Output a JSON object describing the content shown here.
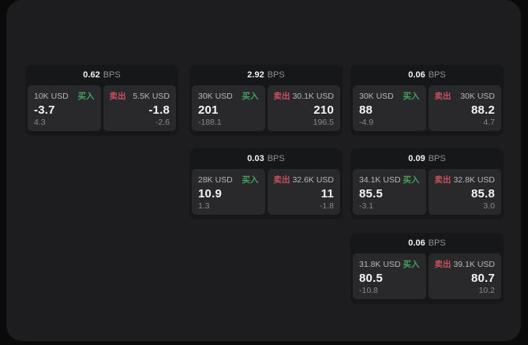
{
  "labels": {
    "bps_unit": "BPS",
    "buy": "买入",
    "sell": "卖出"
  },
  "colors": {
    "outer_background": "#0a0a0b",
    "panel_background": "#1d1d1f",
    "card_background": "#161719",
    "tile_background": "#29292b",
    "buy_accent": "#43a15c",
    "sell_accent": "#c5515e",
    "primary_text": "#f4f4f5",
    "muted_text": "#89898c"
  },
  "cards": [
    {
      "bps": "0.62",
      "col": 0,
      "row": 0,
      "buy": {
        "amount": "10K USD",
        "price": "-3.7",
        "delta": "4.3"
      },
      "sell": {
        "amount": "5.5K USD",
        "price": "-1.8",
        "delta": "-2.6"
      }
    },
    {
      "bps": "2.92",
      "col": 1,
      "row": 0,
      "buy": {
        "amount": "30K USD",
        "price": "201",
        "delta": "-188.1"
      },
      "sell": {
        "amount": "30.1K USD",
        "price": "210",
        "delta": "196.5"
      }
    },
    {
      "bps": "0.06",
      "col": 2,
      "row": 0,
      "buy": {
        "amount": "30K USD",
        "price": "88",
        "delta": "-4.9"
      },
      "sell": {
        "amount": "30K USD",
        "price": "88.2",
        "delta": "4.7"
      }
    },
    {
      "bps": "0.03",
      "col": 1,
      "row": 1,
      "buy": {
        "amount": "28K USD",
        "price": "10.9",
        "delta": "1.3"
      },
      "sell": {
        "amount": "32.6K USD",
        "price": "11",
        "delta": "-1.8"
      }
    },
    {
      "bps": "0.09",
      "col": 2,
      "row": 1,
      "buy": {
        "amount": "34.1K USD",
        "price": "85.5",
        "delta": "-3.1"
      },
      "sell": {
        "amount": "32.8K USD",
        "price": "85.8",
        "delta": "3.0"
      }
    },
    {
      "bps": "0.06",
      "col": 2,
      "row": 2,
      "buy": {
        "amount": "31.8K USD",
        "price": "80.5",
        "delta": "-10.8"
      },
      "sell": {
        "amount": "39.1K USD",
        "price": "80.7",
        "delta": "10.2"
      }
    }
  ]
}
